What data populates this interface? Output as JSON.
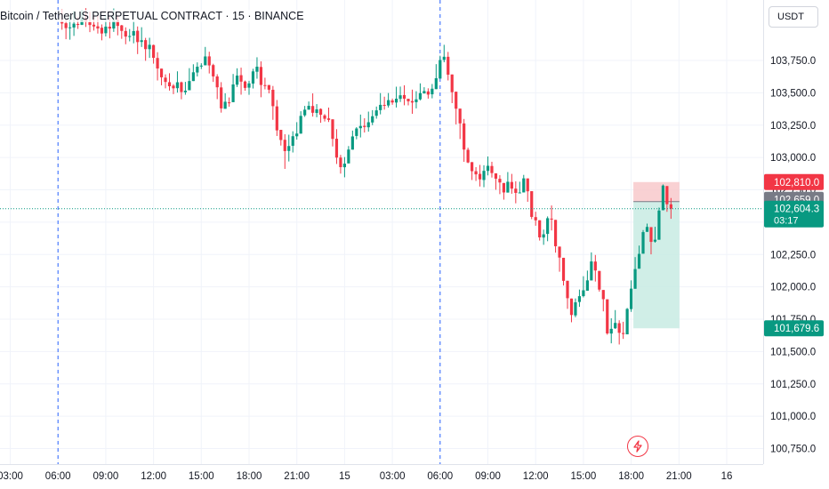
{
  "header": {
    "title": "Bitcoin / TetherUS PERPETUAL CONTRACT · 15 · BINANCE",
    "currency_button": "USDT"
  },
  "colors": {
    "up": "#089981",
    "down": "#f23645",
    "grid": "#f0f3fa",
    "axis_text": "#131722",
    "session_line": "#2962ff",
    "stop_zone": "#f7c5c8",
    "target_zone": "#c8ebe3",
    "price_line": "#089981",
    "gray_tag": "#787b86"
  },
  "alert_icon": "lightning-bolt-icon",
  "chart_data": {
    "type": "candlestick",
    "title": "Bitcoin / TetherUS PERPETUAL CONTRACT · 15 · BINANCE",
    "ylim": [
      100625,
      103960
    ],
    "y_ticks": [
      "103,750.0",
      "103,500.0",
      "103,250.0",
      "103,000.0",
      "102,750.0",
      "102,500.0",
      "102,250.0",
      "102,000.0",
      "101,750.0",
      "101,500.0",
      "101,250.0",
      "101,000.0",
      "100,750.0"
    ],
    "y_tick_values": [
      103750,
      103500,
      103250,
      103000,
      102750,
      102500,
      102250,
      102000,
      101750,
      101500,
      101250,
      101000,
      100750
    ],
    "x_ticks": [
      "03:00",
      "06:00",
      "09:00",
      "12:00",
      "15:00",
      "18:00",
      "21:00",
      "15",
      "03:00",
      "06:00",
      "09:00",
      "12:00",
      "15:00",
      "18:00",
      "21:00",
      "16"
    ],
    "x_tick_index": [
      -13,
      -1,
      11,
      23,
      35,
      47,
      59,
      71,
      83,
      95,
      107,
      119,
      131,
      143,
      155,
      167
    ],
    "session_break_index": [
      -1,
      95
    ],
    "grid": true,
    "price_tags": [
      {
        "label": "102,810.0",
        "value": 102810,
        "kind": "stop"
      },
      {
        "label": "102,659.0",
        "value": 102659,
        "kind": "entry"
      },
      {
        "label": "102,604.3",
        "value": 102604.3,
        "kind": "last",
        "countdown": "03:17"
      },
      {
        "label": "101,679.6",
        "value": 101679.6,
        "kind": "target"
      }
    ],
    "position": {
      "start_index": 144,
      "end_index": 152,
      "entry": 102659,
      "stop": 102810,
      "target": 101679.6
    },
    "candles": [
      [
        104051.7,
        104036.1,
        104144.7,
        103987.5
      ],
      [
        104037.9,
        104000.1,
        104066.1,
        103914.4
      ],
      [
        103999.4,
        104006.1,
        104095.2,
        103910.7
      ],
      [
        104004.9,
        104034.2,
        104132.5,
        103939.9
      ],
      [
        104031.8,
        104027.3,
        104083.5,
        103993.7
      ],
      [
        104025.4,
        104074.7,
        104140.1,
        104023.6
      ],
      [
        104075.5,
        104049.1,
        104154.2,
        104008.9
      ],
      [
        104046.2,
        104024.1,
        104125.9,
        103968.7
      ],
      [
        104026.6,
        104012.8,
        104101.4,
        103981.0
      ],
      [
        104014.1,
        103997.4,
        104097.4,
        103958.1
      ],
      [
        104002.9,
        103958.4,
        104028.5,
        103905.7
      ],
      [
        103960.6,
        104011.7,
        104103.6,
        103935.7
      ],
      [
        104010.6,
        103996.5,
        104083.2,
        103920.8
      ],
      [
        103997.0,
        104057.9,
        104151.6,
        103970.8
      ],
      [
        104061.1,
        104017.2,
        104093.7,
        103944.2
      ],
      [
        104021.2,
        103978.5,
        104024.8,
        103917.2
      ],
      [
        103977.8,
        103934.7,
        104005.8,
        103875.2
      ],
      [
        103934.4,
        103938.6,
        103993.0,
        103897.9
      ],
      [
        103942.5,
        103977.1,
        104055.1,
        103882.5
      ],
      [
        103979.7,
        103892.1,
        104012.8,
        103799.3
      ],
      [
        103893.1,
        103906.3,
        104006.9,
        103854.2
      ],
      [
        103907.2,
        103837.7,
        103924.7,
        103747.4
      ],
      [
        103837.4,
        103871.0,
        103925.5,
        103769.6
      ],
      [
        103869.2,
        103770.5,
        103872.3,
        103725.3
      ],
      [
        103769.1,
        103687.9,
        103813.9,
        103595.4
      ],
      [
        103686.8,
        103619.8,
        103686.8,
        103557.9
      ],
      [
        103617.1,
        103583.9,
        103642.7,
        103534.4
      ],
      [
        103581.8,
        103550.6,
        103651.6,
        103517.5
      ],
      [
        103555.0,
        103534.8,
        103567.5,
        103489.6
      ],
      [
        103535.6,
        103581.4,
        103666.0,
        103501.5
      ],
      [
        103581.0,
        103505.9,
        103586.5,
        103450.0
      ],
      [
        103504.5,
        103516.5,
        103584.4,
        103485.0
      ],
      [
        103519.7,
        103590.8,
        103690.6,
        103534.9
      ],
      [
        103590.8,
        103658.6,
        103720.6,
        103615.4
      ],
      [
        103656.9,
        103701.7,
        103735.2,
        103626.5
      ],
      [
        103703.3,
        103710.4,
        103728.4,
        103683.8
      ],
      [
        103712.6,
        103781.0,
        103854.6,
        103725.0
      ],
      [
        103781.5,
        103711.6,
        103817.6,
        103649.5
      ],
      [
        103714.4,
        103626.9,
        103724.5,
        103584.0
      ],
      [
        103626.3,
        103542.5,
        103643.6,
        103451.1
      ],
      [
        103541.5,
        103379.6,
        103582.3,
        103346.7
      ],
      [
        103376.3,
        103430.8,
        103496.4,
        103383.6
      ],
      [
        103426.1,
        103425.7,
        103464.1,
        103392.7
      ],
      [
        103427.5,
        103564.7,
        103645.6,
        103444.9
      ],
      [
        103562.8,
        103633.0,
        103689.4,
        103544.9
      ],
      [
        103636.1,
        103586.3,
        103694.4,
        103485.5
      ],
      [
        103587.1,
        103537.8,
        103594.5,
        103516.1
      ],
      [
        103539.7,
        103573.0,
        103592.4,
        103484.5
      ],
      [
        103571.2,
        103665.6,
        103685.7,
        103533.2
      ],
      [
        103662.7,
        103701.7,
        103774.6,
        103608.9
      ],
      [
        103699.8,
        103560.5,
        103742.9,
        103465.7
      ],
      [
        103559.4,
        103558.4,
        103616.6,
        103526.8
      ],
      [
        103560.1,
        103524.2,
        103538.8,
        103495.5
      ],
      [
        103523.4,
        103396.7,
        103552.8,
        103291.0
      ],
      [
        103395.0,
        103209.6,
        103444.3,
        103166.2
      ],
      [
        103213.7,
        103134.9,
        103190.7,
        103092.1
      ],
      [
        103136.7,
        103049.5,
        103180.0,
        102911.8
      ],
      [
        103050.5,
        103088.5,
        103176.0,
        102969.3
      ],
      [
        103090.4,
        103164.3,
        103202.7,
        103038.5
      ],
      [
        103163.7,
        103185.0,
        103272.9,
        103138.0
      ],
      [
        103184.4,
        103321.5,
        103357.6,
        103267.5
      ],
      [
        103326.1,
        103369.5,
        103398.6,
        103314.0
      ],
      [
        103369.7,
        103399.3,
        103432.8,
        103387.1
      ],
      [
        103398.0,
        103345.7,
        103495.5,
        103316.2
      ],
      [
        103344.2,
        103371.7,
        103412.7,
        103311.2
      ],
      [
        103375.1,
        103330.3,
        103379.3,
        103268.1
      ],
      [
        103325.3,
        103299.3,
        103335.5,
        103278.1
      ],
      [
        103302.2,
        103290.6,
        103385.8,
        103274.1
      ],
      [
        103294.9,
        103143.6,
        103293.7,
        103085.2
      ],
      [
        103145.0,
        102999.1,
        103218.8,
        102949.8
      ],
      [
        102999.3,
        102925.2,
        103020.1,
        102875.3
      ],
      [
        102924.7,
        102952.3,
        103003.2,
        102846.8
      ],
      [
        102954.1,
        103061.3,
        103088.4,
        103022.5
      ],
      [
        103060.6,
        103162.6,
        103207.9,
        103063.8
      ],
      [
        103166.3,
        103224.2,
        103234.7,
        103140.8
      ],
      [
        103226.3,
        103243.4,
        103331.6,
        103154.9
      ],
      [
        103244.5,
        103235.3,
        103303.0,
        103193.1
      ],
      [
        103233.6,
        103272.3,
        103354.6,
        103199.5
      ],
      [
        103270.7,
        103318.8,
        103365.9,
        103250.1
      ],
      [
        103322.3,
        103364.2,
        103393.7,
        103299.9
      ],
      [
        103366.0,
        103406.8,
        103497.7,
        103333.5
      ],
      [
        103406.3,
        103400.4,
        103470.0,
        103369.7
      ],
      [
        103402.0,
        103443.2,
        103498.3,
        103385.7
      ],
      [
        103440.8,
        103425.1,
        103455.2,
        103407.4
      ],
      [
        103424.8,
        103454.4,
        103547.2,
        103386.3
      ],
      [
        103453.2,
        103480.7,
        103548.1,
        103428.9
      ],
      [
        103482.8,
        103454.6,
        103558.1,
        103403.5
      ],
      [
        103453.7,
        103434.4,
        103448.5,
        103402.6
      ],
      [
        103436.0,
        103425.0,
        103524.6,
        103337.8
      ],
      [
        103427.5,
        103449.4,
        103512.5,
        103379.4
      ],
      [
        103449.5,
        103497.8,
        103573.0,
        103441.3
      ],
      [
        103494.8,
        103513.4,
        103543.1,
        103497.4
      ],
      [
        103510.7,
        103486.3,
        103534.7,
        103455.1
      ],
      [
        103488.4,
        103531.6,
        103568.1,
        103457.3
      ],
      [
        103528.3,
        103612.8,
        103721.4,
        103568.2
      ],
      [
        103609.8,
        103753.4,
        103786.3,
        103686.3
      ],
      [
        103754.4,
        103778.7,
        103871.0,
        103736.0
      ],
      [
        103778.4,
        103640.2,
        103816.2,
        103595.5
      ],
      [
        103641.6,
        103504.8,
        103580.9,
        103420.0
      ],
      [
        103508.6,
        103377.0,
        103468.1,
        103255.6
      ],
      [
        103377.6,
        103263.7,
        103268.8,
        103142.6
      ],
      [
        103263.3,
        103061.3,
        103297.7,
        102966.5
      ],
      [
        103059.6,
        102961.3,
        103075.6,
        102956.0
      ],
      [
        102964.1,
        102894.2,
        102944.7,
        102825.9
      ],
      [
        102893.9,
        102869.6,
        102925.2,
        102818.6
      ],
      [
        102873.3,
        102830.9,
        102942.8,
        102775.5
      ],
      [
        102826.0,
        102896.6,
        102940.0,
        102770.3
      ],
      [
        102896.1,
        102935.7,
        103008.0,
        102861.7
      ],
      [
        102934.1,
        102879.7,
        102966.8,
        102844.9
      ],
      [
        102877.4,
        102836.1,
        102869.3,
        102750.3
      ],
      [
        102835.0,
        102806.7,
        102863.0,
        102716.6
      ],
      [
        102802.7,
        102729.7,
        102795.0,
        102674.0
      ],
      [
        102728.7,
        102812.3,
        102887.3,
        102787.3
      ],
      [
        102810.4,
        102759.4,
        102873.2,
        102719.6
      ],
      [
        102759.0,
        102726.2,
        102816.2,
        102645.7
      ],
      [
        102727.0,
        102729.3,
        102812.7,
        102723.5
      ],
      [
        102729.7,
        102838.7,
        102865.4,
        102732.4
      ],
      [
        102838.1,
        102738.7,
        102818.9,
        102657.5
      ],
      [
        102739.5,
        102540.7,
        102559.6,
        102523.3
      ],
      [
        102539.0,
        102514.2,
        102580.5,
        102472.4
      ],
      [
        102514.7,
        102382.4,
        102478.4,
        102357.8
      ],
      [
        102381.3,
        102406.0,
        102442.3,
        102324.9
      ],
      [
        102409.2,
        102530.5,
        102544.4,
        102352.6
      ],
      [
        102527.4,
        102520.1,
        102629.1,
        102435.9
      ],
      [
        102517.7,
        102313.9,
        102430.6,
        102264.3
      ],
      [
        102311.1,
        102226.3,
        102224.8,
        102116.8
      ],
      [
        102224.6,
        102046.4,
        102172.1,
        102010.3
      ],
      [
        102046.9,
        101912.3,
        101930.0,
        101829.7
      ],
      [
        101909.6,
        101782.5,
        101796.5,
        101726.2
      ],
      [
        101779.3,
        101880.3,
        101910.4,
        101764.9
      ],
      [
        101883.2,
        101927.9,
        101979.1,
        101845.4
      ],
      [
        101928.4,
        101973.4,
        102082.2,
        101918.5
      ],
      [
        101970.1,
        102050.1,
        102125.6,
        101969.2
      ],
      [
        102049.6,
        102196.4,
        102266.4,
        102187.1
      ],
      [
        102195.4,
        102126.4,
        102246.3,
        102041.1
      ],
      [
        102122.9,
        101978.7,
        102091.4,
        101963.2
      ],
      [
        101975.7,
        101904.9,
        101882.3,
        101810.5
      ],
      [
        101903.6,
        101640.0,
        101652.1,
        101630.1
      ],
      [
        101639.1,
        101675.3,
        101756.9,
        101563.5
      ],
      [
        101679.9,
        101721.2,
        101820.5,
        101674.5
      ],
      [
        101718.9,
        101644.5,
        101741.7,
        101554.5
      ],
      [
        101642.9,
        101635.5,
        101730.0,
        101597.8
      ],
      [
        101632.9,
        101829.4,
        101836.8,
        101732.2
      ],
      [
        101828.0,
        101986.2,
        102050.2,
        101806.6
      ],
      [
        101985.2,
        102137.3,
        102229.9,
        101987.5
      ],
      [
        102140.4,
        102254.8,
        102319.0,
        102228.5
      ],
      [
        102256.3,
        102423.1,
        102439.0,
        102371.7
      ],
      [
        102425.2,
        102463.2,
        102489.1,
        102451.9
      ],
      [
        102461.6,
        102347.6,
        102460.8,
        102251.1
      ],
      [
        102349.7,
        102364.4,
        102464.4,
        102341.5
      ],
      [
        102364.2,
        102589.9,
        102613.1,
        102543.6
      ],
      [
        102592.3,
        102783.0,
        102791.5,
        102697.7
      ],
      [
        102779.1,
        102638.6,
        102732.7,
        102580.0
      ],
      [
        102638.1,
        102604.3,
        102686.7,
        102526.1
      ]
    ]
  }
}
